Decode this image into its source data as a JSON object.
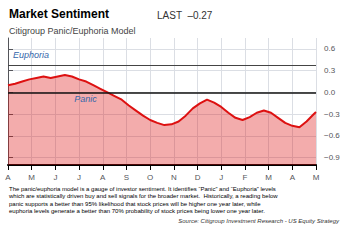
{
  "chart_data": {
    "type": "line",
    "title": "Market Sentiment",
    "header_note": "LAST  –0.27",
    "subtitle": "Citigroup Panic/Euphoria Model",
    "caption": "The panic/euphoria model is a gauge of investor sentiment. It identifies “Panic” and “Euphoria” levels\nwhich are statistically driven buy and sell signals for the broader market.  Historically, a reading below\npanic supports a better than 95% likelihood that stock prices will be higher one year later, while\neuphoria levels generate a better than 70% probability of stock prices being lower one year later.",
    "source": "Source: Citigroup Investment Research - US Equity Strategy",
    "color": "#dd1111",
    "grid": true,
    "x": [
      0,
      0.3,
      0.6,
      0.9,
      1.2,
      1.5,
      1.8,
      2.1,
      2.4,
      2.7,
      3.0,
      3.3,
      3.6,
      3.9,
      4.2,
      4.5,
      4.8,
      5.1,
      5.4,
      5.7,
      6.0,
      6.3,
      6.6,
      6.9,
      7.2,
      7.5,
      7.8,
      8.1,
      8.4,
      8.7,
      9.0,
      9.3,
      9.6,
      9.9,
      10.2,
      10.5,
      10.8,
      11.1,
      11.4,
      11.7,
      12.0,
      12.3,
      12.6,
      12.9,
      13.0
    ],
    "values": [
      0.1,
      0.12,
      0.15,
      0.18,
      0.2,
      0.22,
      0.2,
      0.22,
      0.24,
      0.22,
      0.18,
      0.15,
      0.1,
      0.05,
      0.0,
      -0.05,
      -0.1,
      -0.18,
      -0.25,
      -0.32,
      -0.38,
      -0.42,
      -0.45,
      -0.44,
      -0.4,
      -0.32,
      -0.22,
      -0.15,
      -0.1,
      -0.14,
      -0.2,
      -0.28,
      -0.35,
      -0.38,
      -0.34,
      -0.28,
      -0.25,
      -0.28,
      -0.35,
      -0.42,
      -0.46,
      -0.48,
      -0.4,
      -0.3,
      -0.27
    ],
    "xlim": [
      0,
      13
    ],
    "xticks": [
      {
        "value": 0,
        "label": "A"
      },
      {
        "value": 1,
        "label": "M"
      },
      {
        "value": 2,
        "label": "J"
      },
      {
        "value": 3,
        "label": "J"
      },
      {
        "value": 4,
        "label": "A"
      },
      {
        "value": 5,
        "label": "S"
      },
      {
        "value": 6,
        "label": "O"
      },
      {
        "value": 7,
        "label": "N"
      },
      {
        "value": 8,
        "label": "D"
      },
      {
        "value": 9,
        "label": "J"
      },
      {
        "value": 10,
        "label": "F"
      },
      {
        "value": 11,
        "label": "M"
      },
      {
        "value": 12,
        "label": "A"
      },
      {
        "value": 13,
        "label": "M"
      }
    ],
    "ylim": [
      -1.0,
      0.75
    ],
    "yticks": [
      {
        "value": 0.6,
        "label": "0.6"
      },
      {
        "value": 0.3,
        "label": "0.3"
      },
      {
        "value": 0.0,
        "label": "0.0"
      },
      {
        "value": -0.3,
        "label": "−0.3"
      },
      {
        "value": -0.6,
        "label": "−0.6"
      },
      {
        "value": -0.9,
        "label": "−0.9"
      }
    ],
    "reference_lines": [
      {
        "y": 0.0,
        "color": "#111111"
      },
      {
        "y": 0.38,
        "color": "#444444",
        "label": "Euphoria"
      }
    ],
    "annotations": [
      {
        "text": "Panic",
        "x": 2.8,
        "y": -0.2
      }
    ]
  }
}
